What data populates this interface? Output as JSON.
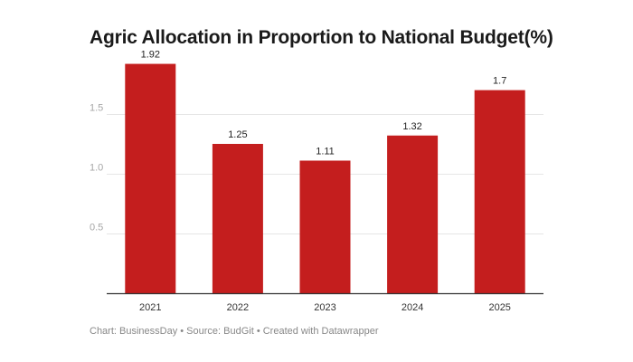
{
  "chart_data": {
    "type": "bar",
    "title": "Agric Allocation in Proportion to National Budget(%)",
    "categories": [
      "2021",
      "2022",
      "2023",
      "2024",
      "2025"
    ],
    "values": [
      1.92,
      1.25,
      1.11,
      1.32,
      1.7
    ],
    "value_labels": [
      "1.92",
      "1.25",
      "1.11",
      "1.32",
      "1.7"
    ],
    "y_ticks": [
      0.5,
      1.0,
      1.5
    ],
    "y_tick_labels": [
      "0.5",
      "1.0",
      "1.5"
    ],
    "ylim": [
      0,
      2.0
    ],
    "xlabel": "",
    "ylabel": "",
    "grid": true,
    "bar_color": "#c41e1e",
    "gridline_color": "#e6e6e6",
    "baseline_color": "#333333"
  },
  "footer": {
    "source": "Chart: BusinessDay • Source: BudGit • Created with Datawrapper"
  }
}
